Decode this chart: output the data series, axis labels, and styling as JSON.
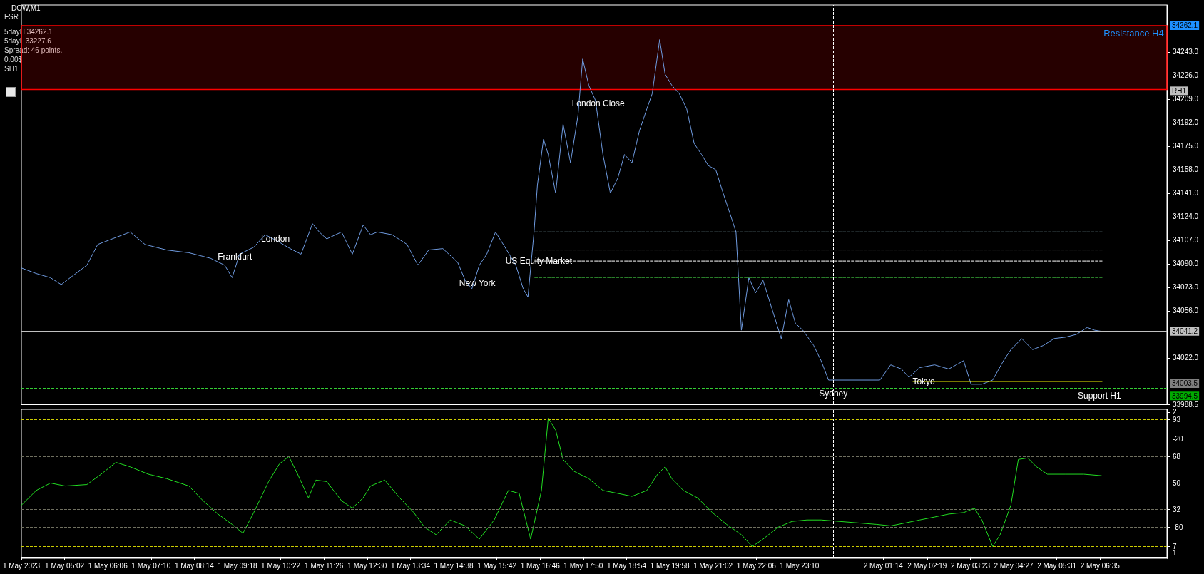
{
  "chart_data": [
    {
      "type": "line",
      "title": "DOW,M1",
      "tick_labels": "y",
      "marker": "none",
      "line_style": "solid",
      "xlim": [
        "2023-05-01T03:58",
        "2023-05-02T08:14"
      ],
      "ylim": [
        33988.5,
        34277
      ],
      "yticks": [
        {
          "value": 33988.5,
          "label": "33988.5"
        },
        {
          "value": 34022,
          "label": "34022.0"
        },
        {
          "value": 34056,
          "label": "34056.0"
        },
        {
          "value": 34073,
          "label": "34073.0"
        },
        {
          "value": 34090,
          "label": "34090.0"
        },
        {
          "value": 34107,
          "label": "34107.0"
        },
        {
          "value": 34124,
          "label": "34124.0"
        },
        {
          "value": 34141,
          "label": "34141.0"
        },
        {
          "value": 34158,
          "label": "34158.0"
        },
        {
          "value": 34175,
          "label": "34175.0"
        },
        {
          "value": 34192,
          "label": "34192.0"
        },
        {
          "value": 34209,
          "label": "34209.0"
        },
        {
          "value": 34226,
          "label": "34226.0"
        },
        {
          "value": 34243,
          "label": "34243.0"
        }
      ],
      "x": [
        "2023-05-01T03:58",
        "2023-05-01T04:20",
        "2023-05-01T04:41",
        "2023-05-01T04:57",
        "2023-05-01T05:13",
        "2023-05-01T05:35",
        "2023-05-01T05:51",
        "2023-05-01T06:07",
        "2023-05-01T06:39",
        "2023-05-01T07:01",
        "2023-05-01T07:33",
        "2023-05-01T08:06",
        "2023-05-01T08:38",
        "2023-05-01T08:59",
        "2023-05-01T09:10",
        "2023-05-01T09:21",
        "2023-05-01T09:42",
        "2023-05-01T09:59",
        "2023-05-01T10:15",
        "2023-05-01T10:36",
        "2023-05-01T10:52",
        "2023-05-01T11:09",
        "2023-05-01T11:19",
        "2023-05-01T11:30",
        "2023-05-01T11:52",
        "2023-05-01T12:08",
        "2023-05-01T12:24",
        "2023-05-01T12:35",
        "2023-05-01T12:45",
        "2023-05-01T13:07",
        "2023-05-01T13:29",
        "2023-05-01T13:45",
        "2023-05-01T14:01",
        "2023-05-01T14:22",
        "2023-05-01T14:44",
        "2023-05-01T14:55",
        "2023-05-01T15:05",
        "2023-05-01T15:16",
        "2023-05-01T15:27",
        "2023-05-01T15:40",
        "2023-05-01T15:54",
        "2023-05-01T16:10",
        "2023-05-01T16:21",
        "2023-05-01T16:28",
        "2023-05-01T16:37",
        "2023-05-01T16:42",
        "2023-05-01T16:51",
        "2023-05-01T16:58",
        "2023-05-01T17:09",
        "2023-05-01T17:20",
        "2023-05-01T17:31",
        "2023-05-01T17:42",
        "2023-05-01T17:49",
        "2023-05-01T17:58",
        "2023-05-01T18:08",
        "2023-05-01T18:19",
        "2023-05-01T18:30",
        "2023-05-01T18:41",
        "2023-05-01T18:51",
        "2023-05-01T19:02",
        "2023-05-01T19:13",
        "2023-05-01T19:24",
        "2023-05-01T19:32",
        "2023-05-01T19:43",
        "2023-05-01T19:51",
        "2023-05-01T20:01",
        "2023-05-01T20:12",
        "2023-05-01T20:23",
        "2023-05-01T20:34",
        "2023-05-01T20:45",
        "2023-05-01T20:55",
        "2023-05-01T21:06",
        "2023-05-01T21:17",
        "2023-05-01T21:28",
        "2023-05-01T21:36",
        "2023-05-01T21:44",
        "2023-05-01T21:55",
        "2023-05-01T22:05",
        "2023-05-01T22:16",
        "2023-05-01T22:27",
        "2023-05-01T22:43",
        "2023-05-01T22:54",
        "2023-05-01T23:04",
        "2023-05-01T23:15",
        "2023-05-01T23:31",
        "2023-05-01T23:42",
        "2023-05-01T23:53",
        "2023-05-02T01:09",
        "2023-05-02T01:25",
        "2023-05-02T01:41",
        "2023-05-02T01:52",
        "2023-05-02T02:08",
        "2023-05-02T02:30",
        "2023-05-02T02:51",
        "2023-05-02T03:13",
        "2023-05-02T03:24",
        "2023-05-02T03:40",
        "2023-05-02T03:56",
        "2023-05-02T04:12",
        "2023-05-02T04:23",
        "2023-05-02T04:39",
        "2023-05-02T04:55",
        "2023-05-02T05:11",
        "2023-05-02T05:27",
        "2023-05-02T05:44",
        "2023-05-02T06:00",
        "2023-05-02T06:16",
        "2023-05-02T06:27",
        "2023-05-02T06:40"
      ],
      "series": [
        {
          "color": "#6f9be0",
          "values": [
            34087,
            34083,
            34080,
            34075,
            34081,
            34089,
            34104,
            34107,
            34113,
            34104,
            34100,
            34098,
            34094,
            34089,
            34080,
            34097,
            34102,
            34111,
            34107,
            34101,
            34097,
            34119,
            34113,
            34108,
            34113,
            34097,
            34118,
            34111,
            34113,
            34111,
            34104,
            34089,
            34100,
            34101,
            34091,
            34078,
            34072,
            34089,
            34097,
            34113,
            34102,
            34089,
            34072,
            34066,
            34113,
            34147,
            34180,
            34169,
            34141,
            34191,
            34163,
            34197,
            34238,
            34219,
            34208,
            34169,
            34141,
            34152,
            34169,
            34163,
            34186,
            34202,
            34213,
            34252,
            34227,
            34219,
            34213,
            34202,
            34177,
            34169,
            34161,
            34158,
            34141,
            34125,
            34113,
            34042,
            34080,
            34069,
            34078,
            34061,
            34036,
            34064,
            34047,
            34042,
            34031,
            34020,
            34006,
            34006,
            34017,
            34014,
            34008,
            34015,
            34017,
            34014,
            34020,
            34003,
            34003,
            34006,
            34020,
            34028,
            34036,
            34028,
            34031,
            34036,
            34037,
            34039,
            34044,
            34042,
            34041
          ]
        },
        {
          "color": "#add8e6",
          "line_style": "dashed",
          "x": [
            "2023-05-01T16:38",
            "2023-05-02T06:38"
          ],
          "values": [
            34113,
            34113
          ]
        },
        {
          "color": "#a0a0a0",
          "line_style": "dashed",
          "x": [
            "2023-05-01T16:38",
            "2023-05-02T06:38"
          ],
          "values": [
            34100,
            34100
          ]
        },
        {
          "color": "#ffffff",
          "line_style": "dashed",
          "x": [
            "2023-05-01T16:38",
            "2023-05-02T06:38"
          ],
          "values": [
            34092,
            34092
          ]
        },
        {
          "color": "#2e8b2e",
          "line_style": "dashed",
          "x": [
            "2023-05-01T16:38",
            "2023-05-02T06:38"
          ],
          "values": [
            34080,
            34080
          ]
        },
        {
          "color": "#ffff00",
          "x": [
            "2023-05-02T01:58",
            "2023-05-02T06:38"
          ],
          "values": [
            34005,
            34005
          ]
        }
      ],
      "ref_lines": [
        {
          "axis": "y",
          "value": 34262.1,
          "label": "34262.1",
          "color": "#1e90ff",
          "line_style": "dotted"
        },
        {
          "axis": "y",
          "value": 34068,
          "color": "#00ff00",
          "line_style": "solid"
        },
        {
          "axis": "y",
          "value": 34041.2,
          "label": "34041.2",
          "color": "#c0c0c0",
          "line_style": "solid"
        },
        {
          "axis": "y",
          "value": 34003.5,
          "label": "34003.5",
          "color": "#808080",
          "line_style": "dashed"
        },
        {
          "axis": "y",
          "value": 34000,
          "color": "#33cc33",
          "line_style": "dashed"
        },
        {
          "axis": "y",
          "value": 33994.5,
          "label": "33994.5",
          "color": "#00aa00",
          "line_style": "dashed"
        },
        {
          "axis": "y",
          "value": 34215,
          "label": "RH1",
          "color": "#c0c0c0",
          "line_style": "dashed"
        },
        {
          "axis": "x",
          "value": "2023-05-02T00:00",
          "color": "#ffffff",
          "line_style": "dashed"
        }
      ],
      "bands": [
        {
          "axis": "y",
          "from": 34216,
          "to": 34262,
          "label": "Resistance H4",
          "color": "#ff0000"
        }
      ],
      "annotations": [
        "FSR",
        "5dayH 34262.1",
        "5dayL 33227.6",
        "Spread: 46 points.",
        "0.00$",
        "SH1",
        {
          "text": "London Close",
          "x": "2023-05-01T18:12",
          "y": 34206
        },
        {
          "text": "Frankfurt",
          "x": "2023-05-01T09:14",
          "y": 34095
        },
        {
          "text": "London",
          "x": "2023-05-01T10:14",
          "y": 34108
        },
        {
          "text": "New York",
          "x": "2023-05-01T15:13",
          "y": 34076
        },
        {
          "text": "US Equity Market",
          "x": "2023-05-01T16:44",
          "y": 34092
        },
        {
          "text": "Sydney",
          "x": "2023-05-02T00:00",
          "y": 33996
        },
        {
          "text": "Tokyo",
          "x": "2023-05-02T02:14",
          "y": 34005
        },
        {
          "text": "Support H1",
          "x": "2023-05-02T06:34",
          "y": 33994.5
        }
      ]
    },
    {
      "type": "line",
      "marker": "none",
      "line_style": "solid",
      "xlim": [
        "2023-05-01T03:58",
        "2023-05-02T08:14"
      ],
      "ylim": [
        -1,
        100
      ],
      "xticks": [
        {
          "value": "2023-05-01T03:58",
          "label": "1 May 2023"
        },
        {
          "value": "2023-05-01T05:02",
          "label": "1 May 05:02"
        },
        {
          "value": "2023-05-01T06:06",
          "label": "1 May 06:06"
        },
        {
          "value": "2023-05-01T07:10",
          "label": "1 May 07:10"
        },
        {
          "value": "2023-05-01T08:14",
          "label": "1 May 08:14"
        },
        {
          "value": "2023-05-01T09:18",
          "label": "1 May 09:18"
        },
        {
          "value": "2023-05-01T10:22",
          "label": "1 May 10:22"
        },
        {
          "value": "2023-05-01T11:26",
          "label": "1 May 11:26"
        },
        {
          "value": "2023-05-01T12:30",
          "label": "1 May 12:30"
        },
        {
          "value": "2023-05-01T13:34",
          "label": "1 May 13:34"
        },
        {
          "value": "2023-05-01T14:38",
          "label": "1 May 14:38"
        },
        {
          "value": "2023-05-01T15:42",
          "label": "1 May 15:42"
        },
        {
          "value": "2023-05-01T16:46",
          "label": "1 May 16:46"
        },
        {
          "value": "2023-05-01T17:50",
          "label": "1 May 17:50"
        },
        {
          "value": "2023-05-01T18:54",
          "label": "1 May 18:54"
        },
        {
          "value": "2023-05-01T19:58",
          "label": "1 May 19:58"
        },
        {
          "value": "2023-05-01T21:02",
          "label": "1 May 21:02"
        },
        {
          "value": "2023-05-01T22:06",
          "label": "1 May 22:06"
        },
        {
          "value": "2023-05-01T23:10",
          "label": "1 May 23:10"
        },
        {
          "value": "2023-05-02T01:14",
          "label": "2 May 01:14"
        },
        {
          "value": "2023-05-02T02:19",
          "label": "2 May 02:19"
        },
        {
          "value": "2023-05-02T03:23",
          "label": "2 May 03:23"
        },
        {
          "value": "2023-05-02T04:27",
          "label": "2 May 04:27"
        },
        {
          "value": "2023-05-02T05:31",
          "label": "2 May 05:31"
        },
        {
          "value": "2023-05-02T06:35",
          "label": "2 May 06:35"
        }
      ],
      "yticks": [
        7,
        32,
        50,
        68,
        93
      ],
      "y2lim": [
        -101,
        0
      ],
      "y2ticks": [
        -80,
        -20
      ],
      "y3lim": [
        0.96,
        2.02
      ],
      "y3ticks": [
        1,
        2
      ],
      "x": [
        "2023-05-01T03:58",
        "2023-05-01T04:20",
        "2023-05-01T04:41",
        "2023-05-01T05:03",
        "2023-05-01T05:35",
        "2023-05-01T05:56",
        "2023-05-01T06:18",
        "2023-05-01T06:39",
        "2023-05-01T07:06",
        "2023-05-01T07:33",
        "2023-05-01T08:06",
        "2023-05-01T08:27",
        "2023-05-01T08:49",
        "2023-05-01T09:10",
        "2023-05-01T09:26",
        "2023-05-01T09:42",
        "2023-05-01T10:04",
        "2023-05-01T10:20",
        "2023-05-01T10:34",
        "2023-05-01T10:47",
        "2023-05-01T11:03",
        "2023-05-01T11:14",
        "2023-05-01T11:30",
        "2023-05-01T11:52",
        "2023-05-01T12:08",
        "2023-05-01T12:24",
        "2023-05-01T12:35",
        "2023-05-01T12:56",
        "2023-05-01T13:18",
        "2023-05-01T13:39",
        "2023-05-01T13:55",
        "2023-05-01T14:12",
        "2023-05-01T14:33",
        "2023-05-01T14:55",
        "2023-05-01T15:16",
        "2023-05-01T15:38",
        "2023-05-01T15:59",
        "2023-05-01T16:15",
        "2023-05-01T16:32",
        "2023-05-01T16:48",
        "2023-05-01T16:58",
        "2023-05-01T17:09",
        "2023-05-01T17:20",
        "2023-05-01T17:36",
        "2023-05-01T17:58",
        "2023-05-01T18:19",
        "2023-05-01T18:41",
        "2023-05-01T19:02",
        "2023-05-01T19:24",
        "2023-05-01T19:40",
        "2023-05-01T19:51",
        "2023-05-01T20:01",
        "2023-05-01T20:18",
        "2023-05-01T20:39",
        "2023-05-01T21:01",
        "2023-05-01T21:22",
        "2023-05-01T21:44",
        "2023-05-01T22:00",
        "2023-05-01T22:16",
        "2023-05-01T22:38",
        "2023-05-01T22:59",
        "2023-05-01T23:21",
        "2023-05-01T23:42",
        "2023-05-02T01:04",
        "2023-05-02T01:25",
        "2023-05-02T01:47",
        "2023-05-02T02:08",
        "2023-05-02T02:30",
        "2023-05-02T02:51",
        "2023-05-02T03:13",
        "2023-05-02T03:29",
        "2023-05-02T03:40",
        "2023-05-02T03:56",
        "2023-05-02T04:07",
        "2023-05-02T04:23",
        "2023-05-02T04:34",
        "2023-05-02T04:48",
        "2023-05-02T05:01",
        "2023-05-02T05:17",
        "2023-05-02T05:44",
        "2023-05-02T06:11",
        "2023-05-02T06:37"
      ],
      "series": [
        {
          "color": "#22dd22",
          "values": [
            35,
            45,
            50,
            48,
            49,
            56,
            64,
            61,
            56,
            53,
            48,
            38,
            29,
            22,
            16,
            30,
            51,
            63,
            68,
            56,
            40,
            52,
            51,
            38,
            33,
            40,
            48,
            52,
            40,
            30,
            20,
            15,
            25,
            21,
            12,
            25,
            45,
            43,
            12,
            45,
            94,
            86,
            66,
            58,
            53,
            45,
            43,
            41,
            45,
            56,
            61,
            53,
            45,
            40,
            30,
            22,
            15,
            7,
            12,
            20,
            24,
            25,
            25,
            22,
            21,
            23,
            25,
            27,
            29,
            30,
            33,
            25,
            7,
            15,
            35,
            66,
            67,
            61,
            56,
            56,
            56,
            55
          ]
        }
      ],
      "ref_lines": [
        {
          "axis": "y",
          "value": 93,
          "color": "#cccc00",
          "line_style": "dashed"
        },
        {
          "axis": "y",
          "value": 80,
          "color": "#707060",
          "line_style": "dashed"
        },
        {
          "axis": "y",
          "value": 68,
          "color": "#707060",
          "line_style": "dashed"
        },
        {
          "axis": "y",
          "value": 50,
          "color": "#707060",
          "line_style": "dashed"
        },
        {
          "axis": "y",
          "value": 32,
          "color": "#707060",
          "line_style": "dashed"
        },
        {
          "axis": "y",
          "value": 20,
          "color": "#707060",
          "line_style": "dashed"
        },
        {
          "axis": "y",
          "value": 7,
          "color": "#cccc00",
          "line_style": "dashed"
        },
        {
          "axis": "x",
          "value": "2023-05-02T00:00",
          "color": "#ffffff",
          "line_style": "dashed"
        }
      ]
    }
  ]
}
